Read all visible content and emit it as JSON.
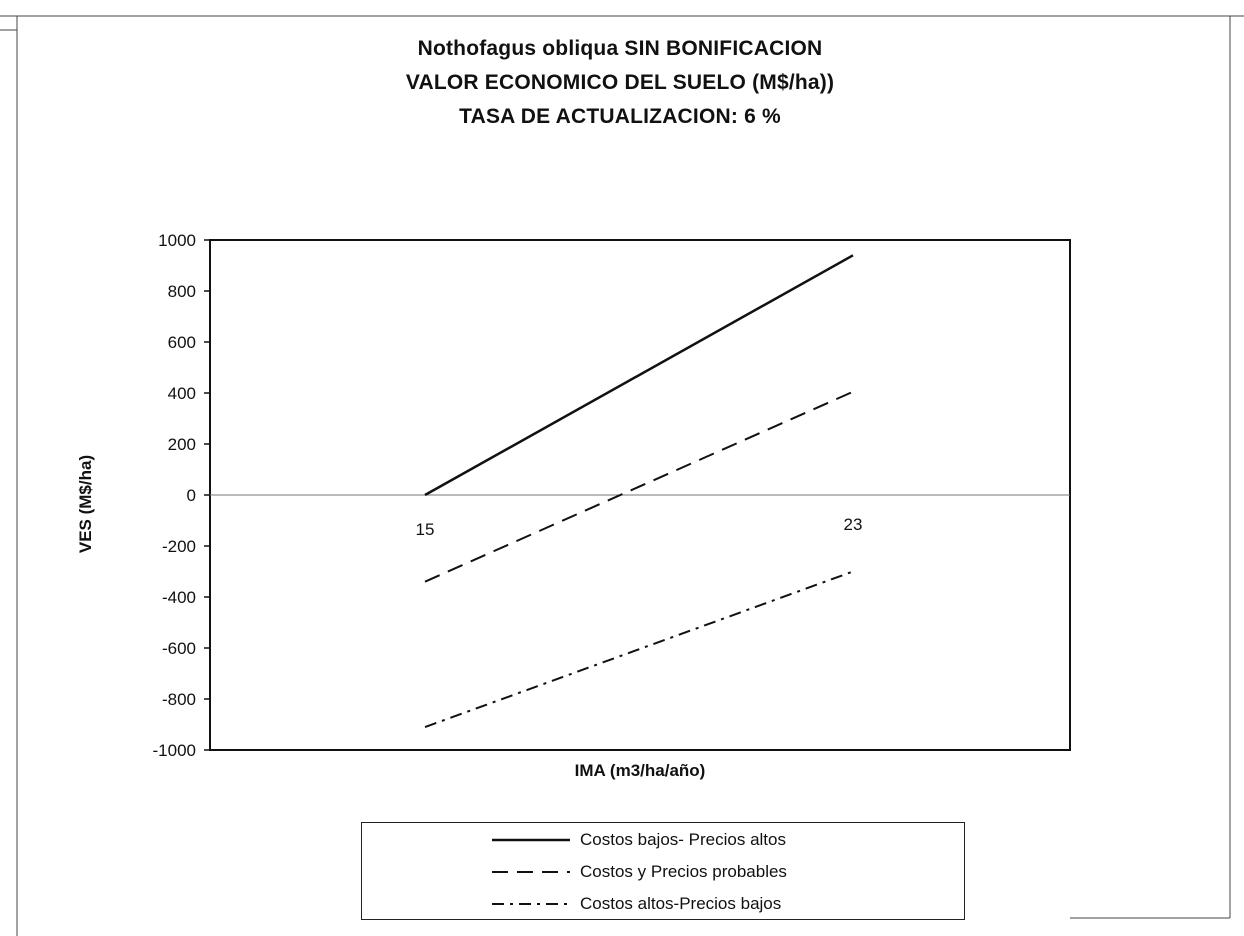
{
  "chart_data": {
    "type": "line",
    "title_lines": [
      "Nothofagus obliqua SIN BONIFICACION",
      "VALOR ECONOMICO DEL SUELO (M$/ha))",
      "TASA DE ACTUALIZACION: 6 %"
    ],
    "xlabel": "IMA (m3/ha/año)",
    "ylabel": "VES (M$/ha)",
    "x": [
      15,
      23
    ],
    "ylim": [
      -1000,
      1000
    ],
    "yticks": [
      1000,
      800,
      600,
      400,
      200,
      0,
      -200,
      -400,
      -600,
      -800,
      -1000
    ],
    "grid": false,
    "legend_position": "bottom",
    "series": [
      {
        "name": "Costos bajos- Precios altos",
        "values": [
          0,
          940
        ],
        "style": "solid"
      },
      {
        "name": "Costos y Precios probables",
        "values": [
          -340,
          405
        ],
        "style": "dashed"
      },
      {
        "name": "Costos altos-Precios bajos",
        "values": [
          -910,
          -300
        ],
        "style": "dashdot"
      }
    ]
  }
}
